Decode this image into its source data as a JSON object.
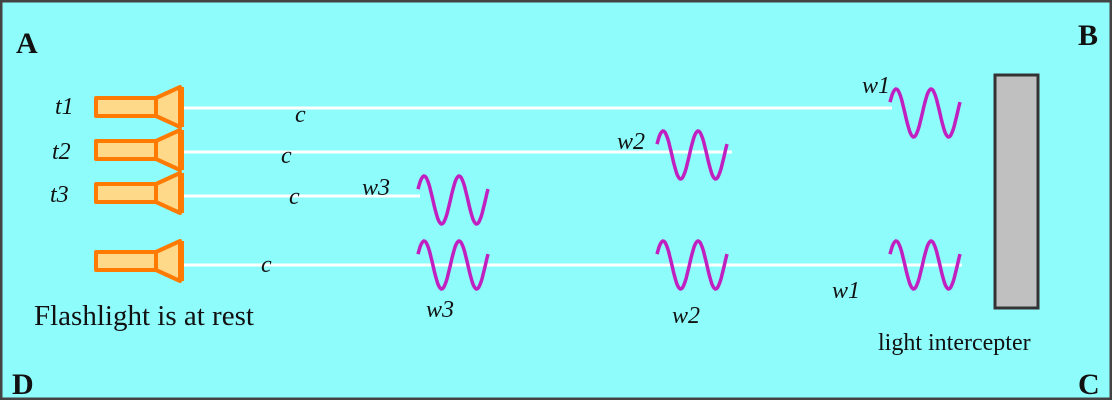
{
  "corners": [
    "A",
    "B",
    "C",
    "D"
  ],
  "flashlights": [
    "t1",
    "t2",
    "t3"
  ],
  "beam_labels": [
    "c",
    "c",
    "c",
    "c"
  ],
  "wave_labels": [
    "w1",
    "w2",
    "w3",
    "w3",
    "w2",
    "w1"
  ],
  "caption": "Flashlight is at rest",
  "interceptor": "light intercepter"
}
